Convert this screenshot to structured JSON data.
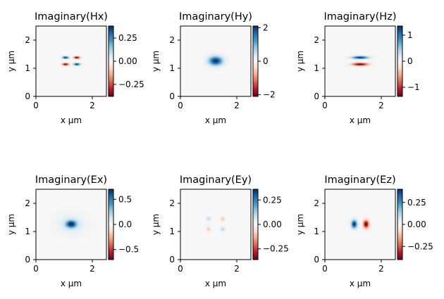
{
  "chart_data": [
    {
      "type": "heatmap",
      "title": "Imaginary(Hx)",
      "xlabel": "x µm",
      "ylabel": "y µm",
      "xlim": [
        0,
        2.5
      ],
      "ylim": [
        0,
        2.5
      ],
      "x_ticks": [
        0,
        2
      ],
      "y_ticks": [
        0,
        1,
        2
      ],
      "x_tick_labels": [
        "0",
        "2"
      ],
      "y_tick_labels": [
        "0",
        "1",
        "2"
      ],
      "colormap": "RdBu",
      "colorbar": {
        "range": [
          -0.38,
          0.38
        ],
        "ticks": [
          0.25,
          0.0,
          -0.25
        ],
        "tick_labels": [
          "0.25",
          "0.00",
          "−0.25"
        ]
      },
      "features": [
        {
          "x": 1.05,
          "y": 1.38,
          "sx": 0.08,
          "sy": 0.03,
          "v": 1.0
        },
        {
          "x": 1.45,
          "y": 1.38,
          "sx": 0.08,
          "sy": 0.03,
          "v": -1.0
        },
        {
          "x": 1.05,
          "y": 1.14,
          "sx": 0.08,
          "sy": 0.03,
          "v": -1.0
        },
        {
          "x": 1.45,
          "y": 1.14,
          "sx": 0.08,
          "sy": 0.03,
          "v": 1.0
        }
      ]
    },
    {
      "type": "heatmap",
      "title": "Imaginary(Hy)",
      "xlabel": "x µm",
      "ylabel": "y µm",
      "xlim": [
        0,
        2.5
      ],
      "ylim": [
        0,
        2.5
      ],
      "x_ticks": [
        0,
        2
      ],
      "y_ticks": [
        0,
        1,
        2
      ],
      "x_tick_labels": [
        "0",
        "2"
      ],
      "y_tick_labels": [
        "0",
        "1",
        "2"
      ],
      "colormap": "RdBu",
      "colorbar": {
        "range": [
          -2.1,
          2.1
        ],
        "ticks": [
          2,
          0,
          -2
        ],
        "tick_labels": [
          "2",
          "0",
          "−2"
        ]
      },
      "features": [
        {
          "x": 1.25,
          "y": 1.26,
          "sx": 0.17,
          "sy": 0.11,
          "v": 1.0
        }
      ]
    },
    {
      "type": "heatmap",
      "title": "Imaginary(Hz)",
      "xlabel": "x µm",
      "ylabel": "y µm",
      "xlim": [
        0,
        2.5
      ],
      "ylim": [
        0,
        2.5
      ],
      "x_ticks": [
        0,
        2
      ],
      "y_ticks": [
        0,
        1,
        2
      ],
      "x_tick_labels": [
        "0",
        "2"
      ],
      "y_tick_labels": [
        "0",
        "1",
        "2"
      ],
      "colormap": "RdBu",
      "colorbar": {
        "range": [
          -1.35,
          1.35
        ],
        "ticks": [
          1,
          0,
          -1
        ],
        "tick_labels": [
          "1",
          "0",
          "−1"
        ]
      },
      "features": [
        {
          "x": 1.25,
          "y": 1.38,
          "sx": 0.2,
          "sy": 0.035,
          "v": 1.0
        },
        {
          "x": 1.25,
          "y": 1.14,
          "sx": 0.2,
          "sy": 0.035,
          "v": -1.0
        }
      ]
    },
    {
      "type": "heatmap",
      "title": "Imaginary(Ex)",
      "xlabel": "x µm",
      "ylabel": "y µm",
      "xlim": [
        0,
        2.5
      ],
      "ylim": [
        0,
        2.5
      ],
      "x_ticks": [
        0,
        2
      ],
      "y_ticks": [
        0,
        1,
        2
      ],
      "x_tick_labels": [
        "0",
        "2"
      ],
      "y_tick_labels": [
        "0",
        "1",
        "2"
      ],
      "colormap": "RdBu",
      "colorbar": {
        "range": [
          -0.7,
          0.7
        ],
        "ticks": [
          0.5,
          0.0,
          -0.5
        ],
        "tick_labels": [
          "0.5",
          "0.0",
          "−0.5"
        ]
      },
      "features": [
        {
          "x": 1.25,
          "y": 1.26,
          "sx": 0.13,
          "sy": 0.09,
          "v": 0.95
        },
        {
          "x": 1.25,
          "y": 1.26,
          "sx": 0.38,
          "sy": 0.25,
          "v": 0.12
        }
      ]
    },
    {
      "type": "heatmap",
      "title": "Imaginary(Ey)",
      "xlabel": "x µm",
      "ylabel": "y µm",
      "xlim": [
        0,
        2.5
      ],
      "ylim": [
        0,
        2.5
      ],
      "x_ticks": [
        0,
        2
      ],
      "y_ticks": [
        0,
        1,
        2
      ],
      "x_tick_labels": [
        "0",
        "2"
      ],
      "y_tick_labels": [
        "0",
        "1",
        "2"
      ],
      "colormap": "RdBu",
      "colorbar": {
        "range": [
          -0.36,
          0.36
        ],
        "ticks": [
          0.25,
          0.0,
          -0.25
        ],
        "tick_labels": [
          "0.25",
          "0.00",
          "−0.25"
        ]
      },
      "features": [
        {
          "x": 1.0,
          "y": 1.45,
          "sx": 0.05,
          "sy": 0.05,
          "v": 0.3
        },
        {
          "x": 1.5,
          "y": 1.45,
          "sx": 0.05,
          "sy": 0.05,
          "v": -0.3
        },
        {
          "x": 1.0,
          "y": 1.08,
          "sx": 0.05,
          "sy": 0.05,
          "v": -0.3
        },
        {
          "x": 1.5,
          "y": 1.08,
          "sx": 0.05,
          "sy": 0.05,
          "v": 0.3
        }
      ]
    },
    {
      "type": "heatmap",
      "title": "Imaginary(Ez)",
      "xlabel": "x µm",
      "ylabel": "y µm",
      "xlim": [
        0,
        2.5
      ],
      "ylim": [
        0,
        2.5
      ],
      "x_ticks": [
        0,
        2
      ],
      "y_ticks": [
        0,
        1,
        2
      ],
      "x_tick_labels": [
        "0",
        "2"
      ],
      "y_tick_labels": [
        "0",
        "1",
        "2"
      ],
      "colormap": "RdBu",
      "colorbar": {
        "range": [
          -0.4,
          0.4
        ],
        "ticks": [
          0.25,
          0.0,
          -0.25
        ],
        "tick_labels": [
          "0.25",
          "0.00",
          "−0.25"
        ]
      },
      "features": [
        {
          "x": 1.04,
          "y": 1.26,
          "sx": 0.07,
          "sy": 0.1,
          "v": 1.0
        },
        {
          "x": 1.46,
          "y": 1.26,
          "sx": 0.07,
          "sy": 0.1,
          "v": -1.0
        }
      ]
    }
  ]
}
